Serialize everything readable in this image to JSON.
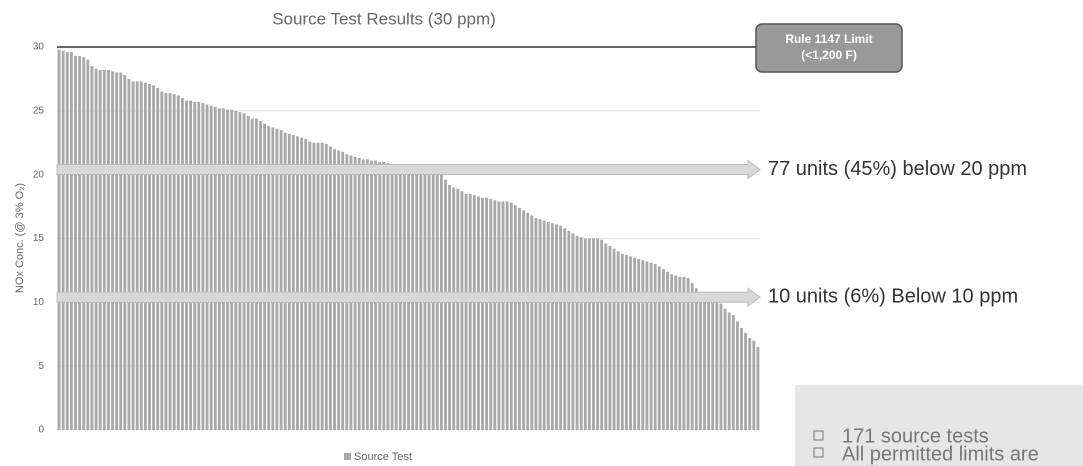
{
  "chart_data": {
    "type": "bar",
    "title": "Source Test Results (30 ppm)",
    "y_label": "NOx Conc. (@ 3% O₂)",
    "legend_label": "Source Test",
    "color": "#a8a8a8",
    "ylim": [
      0,
      30
    ],
    "yticks": [
      0,
      5,
      10,
      15,
      20,
      25,
      30
    ],
    "grid": true,
    "limit": {
      "value": 30,
      "label": [
        "Rule 1147 Limit",
        "(<1,200 F)"
      ]
    },
    "annotations": [
      {
        "text": "77 units (45%) below 20 ppm",
        "y": 20.4
      },
      {
        "text": "10 units (6%) Below 10 ppm",
        "y": 10.4
      }
    ],
    "notes": [
      "171 source tests",
      "All permitted limits are"
    ],
    "values": [
      29.8,
      29.7,
      29.6,
      29.6,
      29.3,
      29.3,
      29.2,
      29.0,
      28.5,
      28.3,
      28.2,
      28.2,
      28.2,
      28.1,
      28.0,
      28.0,
      27.8,
      27.5,
      27.3,
      27.3,
      27.3,
      27.2,
      27.1,
      27.0,
      26.8,
      26.5,
      26.4,
      26.4,
      26.3,
      26.2,
      26.0,
      25.8,
      25.8,
      25.7,
      25.7,
      25.6,
      25.5,
      25.4,
      25.3,
      25.2,
      25.2,
      25.1,
      25.1,
      25.0,
      24.9,
      24.8,
      24.6,
      24.4,
      24.4,
      24.2,
      24.0,
      23.8,
      23.7,
      23.6,
      23.5,
      23.3,
      23.2,
      23.1,
      23.0,
      22.9,
      22.8,
      22.6,
      22.5,
      22.5,
      22.5,
      22.4,
      22.2,
      22.0,
      21.9,
      21.8,
      21.6,
      21.5,
      21.4,
      21.3,
      21.2,
      21.2,
      21.1,
      21.1,
      21.0,
      21.0,
      20.9,
      20.8,
      20.8,
      20.7,
      20.6,
      20.6,
      20.5,
      20.4,
      20.3,
      20.3,
      20.2,
      20.1,
      20.1,
      20.0,
      19.6,
      19.2,
      19.0,
      18.9,
      18.7,
      18.5,
      18.5,
      18.4,
      18.3,
      18.2,
      18.2,
      18.1,
      18.0,
      17.9,
      17.9,
      17.9,
      17.8,
      17.6,
      17.4,
      17.2,
      17.0,
      16.8,
      16.6,
      16.5,
      16.4,
      16.3,
      16.2,
      16.1,
      16.0,
      15.8,
      15.6,
      15.4,
      15.2,
      15.1,
      15.0,
      15.0,
      15.0,
      15.0,
      14.9,
      14.6,
      14.4,
      14.2,
      14.0,
      13.8,
      13.7,
      13.6,
      13.5,
      13.4,
      13.3,
      13.2,
      13.1,
      13.0,
      12.8,
      12.6,
      12.4,
      12.2,
      12.1,
      12.0,
      12.0,
      11.9,
      11.5,
      11.1,
      10.8,
      10.6,
      10.4,
      10.2,
      10.1,
      9.9,
      9.5,
      9.2,
      9.0,
      8.5,
      8.0,
      7.6,
      7.2,
      7.0,
      6.5
    ]
  }
}
